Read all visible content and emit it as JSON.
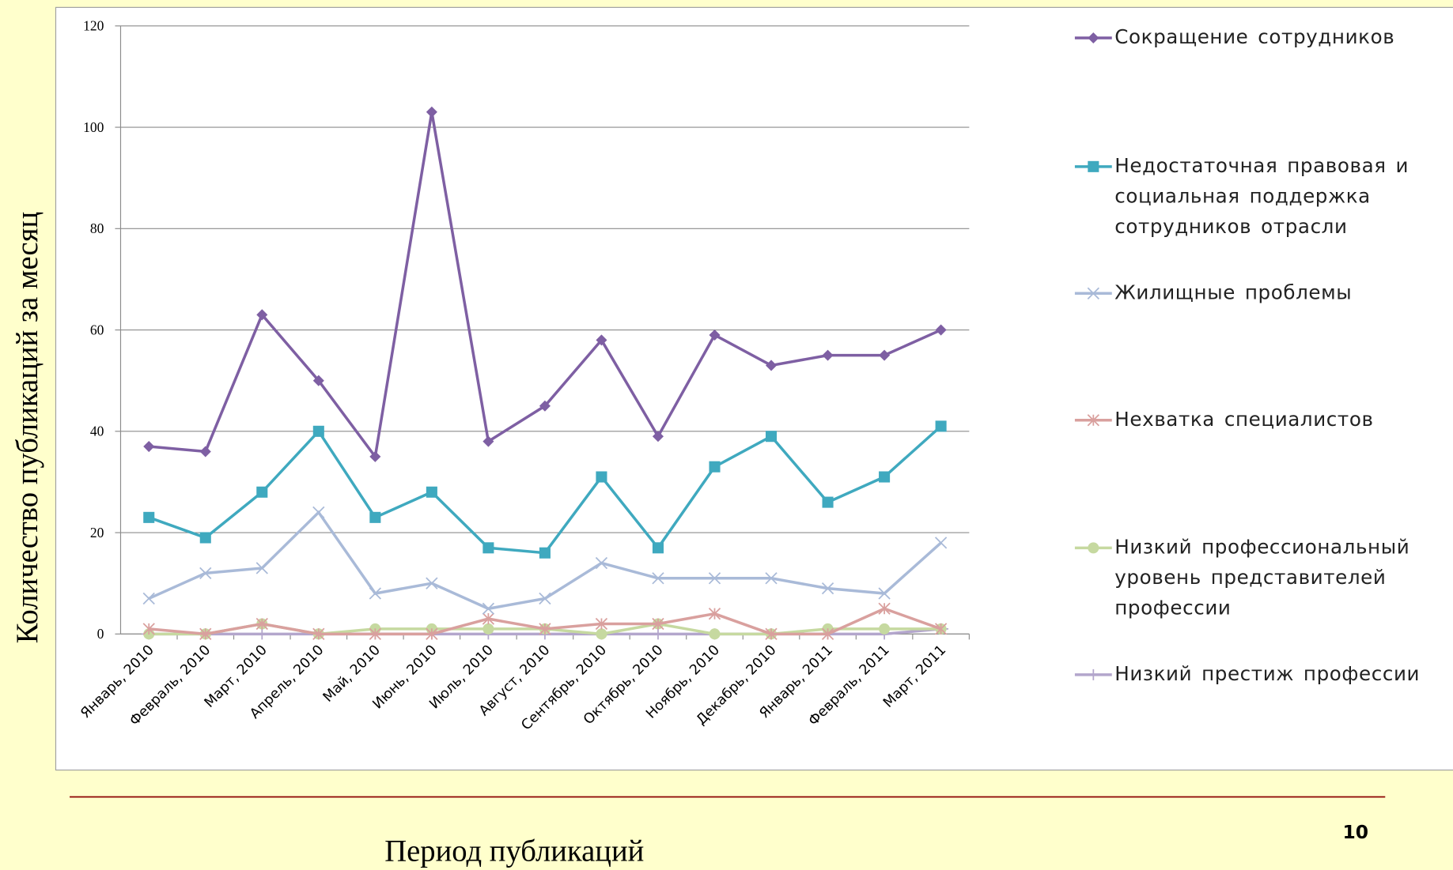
{
  "chart_data": {
    "type": "line",
    "ylabel": "Количество публикаций за  месяц",
    "xlabel": "Период публикаций",
    "page_number": "10",
    "categories": [
      "Январь, 2010",
      "Февраль, 2010",
      "Март, 2010",
      "Апрель, 2010",
      "Май, 2010",
      "Июнь, 2010",
      "Июль, 2010",
      "Август, 2010",
      "Сентябрь, 2010",
      "Октябрь, 2010",
      "Ноябрь, 2010",
      "Декабрь, 2010",
      "Январь, 2011",
      "Февраль, 2011",
      "Март, 2011"
    ],
    "series": [
      {
        "name": "Сокращение сотрудников",
        "color": "#7e5fa3",
        "marker": "diamond",
        "values": [
          37,
          36,
          63,
          50,
          35,
          103,
          38,
          45,
          58,
          39,
          59,
          53,
          55,
          55,
          60
        ]
      },
      {
        "name": "Недостаточная правовая и социальная поддержка сотрудников отрасли",
        "color": "#3fa9bf",
        "marker": "square",
        "values": [
          23,
          19,
          28,
          40,
          23,
          28,
          17,
          16,
          31,
          17,
          33,
          39,
          26,
          31,
          41
        ]
      },
      {
        "name": "Жилищные проблемы",
        "color": "#a9bad8",
        "marker": "x",
        "values": [
          7,
          12,
          13,
          24,
          8,
          10,
          5,
          7,
          14,
          11,
          11,
          11,
          9,
          8,
          18
        ]
      },
      {
        "name": "Нехватка специалистов",
        "color": "#d9a09e",
        "marker": "star",
        "values": [
          1,
          0,
          2,
          0,
          0,
          0,
          3,
          1,
          2,
          2,
          4,
          0,
          0,
          5,
          1
        ]
      },
      {
        "name": "Низкий профессиональный уровень представителей профессии",
        "color": "#c6d9a0",
        "marker": "circle",
        "values": [
          0,
          0,
          2,
          0,
          1,
          1,
          1,
          1,
          0,
          2,
          0,
          0,
          1,
          1,
          1
        ]
      },
      {
        "name": "Низкий престиж профессии",
        "color": "#b3a6cc",
        "marker": "plus",
        "values": [
          0,
          0,
          0,
          0,
          0,
          0,
          0,
          0,
          0,
          0,
          0,
          0,
          0,
          0,
          1
        ]
      }
    ],
    "ylim": [
      0,
      120
    ],
    "yticks": [
      0,
      20,
      40,
      60,
      80,
      100,
      120
    ],
    "grid": true
  }
}
